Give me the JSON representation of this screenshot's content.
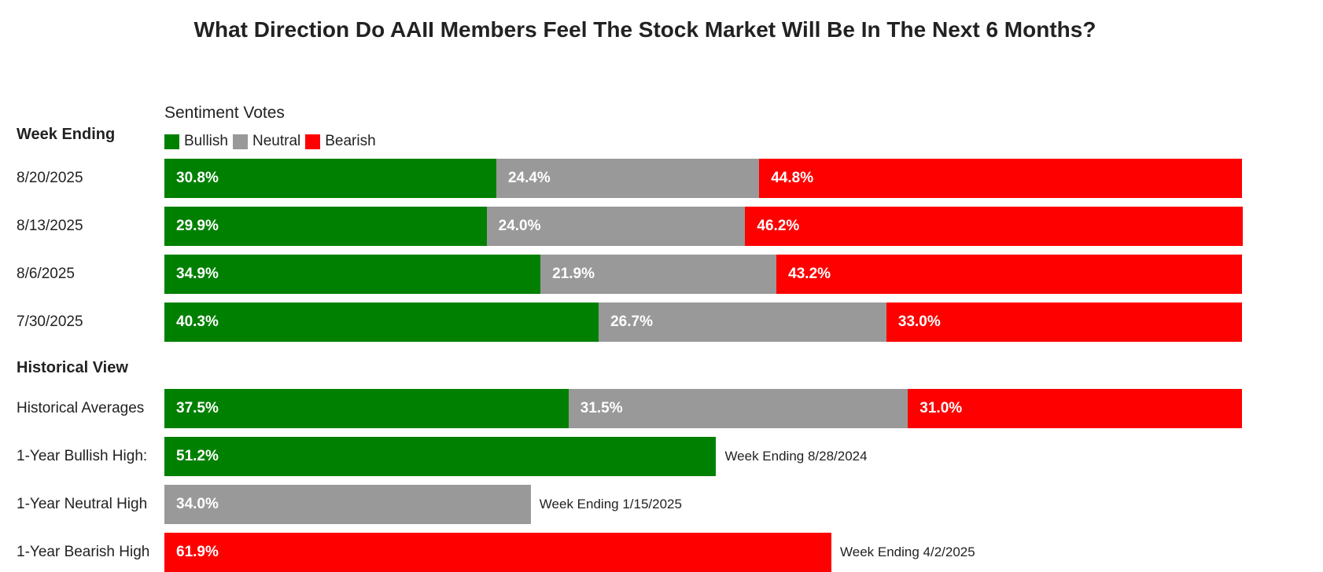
{
  "chart_data": {
    "type": "bar",
    "title": "What Direction Do AAII Members Feel The Stock Market Will Be In The Next 6 Months?",
    "legend_title": "Sentiment Votes",
    "categories_heading": "Week Ending",
    "historical_heading": "Historical View",
    "colors": {
      "Bullish": "#008000",
      "Neutral": "#999999",
      "Bearish": "#ff0000"
    },
    "series": [
      {
        "name": "Bullish"
      },
      {
        "name": "Neutral"
      },
      {
        "name": "Bearish"
      }
    ],
    "weeks": [
      {
        "label": "8/20/2025",
        "values": [
          30.8,
          24.4,
          44.8
        ],
        "texts": [
          "30.8%",
          "24.4%",
          "44.8%"
        ]
      },
      {
        "label": "8/13/2025",
        "values": [
          29.9,
          24.0,
          46.2
        ],
        "texts": [
          "29.9%",
          "24.0%",
          "46.2%"
        ]
      },
      {
        "label": "8/6/2025",
        "values": [
          34.9,
          21.9,
          43.2
        ],
        "texts": [
          "34.9%",
          "21.9%",
          "43.2%"
        ]
      },
      {
        "label": "7/30/2025",
        "values": [
          40.3,
          26.7,
          33.0
        ],
        "texts": [
          "40.3%",
          "26.7%",
          "33.0%"
        ]
      }
    ],
    "historical": [
      {
        "label": "Historical Averages",
        "segments": [
          {
            "series": "Bullish",
            "value": 37.5,
            "text": "37.5%"
          },
          {
            "series": "Neutral",
            "value": 31.5,
            "text": "31.5%"
          },
          {
            "series": "Bearish",
            "value": 31.0,
            "text": "31.0%"
          }
        ],
        "note": ""
      },
      {
        "label": "1-Year Bullish High:",
        "segments": [
          {
            "series": "Bullish",
            "value": 51.2,
            "text": "51.2%"
          }
        ],
        "note": "Week Ending 8/28/2024"
      },
      {
        "label": "1-Year Neutral High",
        "segments": [
          {
            "series": "Neutral",
            "value": 34.0,
            "text": "34.0%"
          }
        ],
        "note": "Week Ending 1/15/2025"
      },
      {
        "label": "1-Year Bearish High",
        "segments": [
          {
            "series": "Bearish",
            "value": 61.9,
            "text": "61.9%"
          }
        ],
        "note": "Week Ending 4/2/2025"
      }
    ],
    "xlim": [
      0,
      100
    ]
  }
}
